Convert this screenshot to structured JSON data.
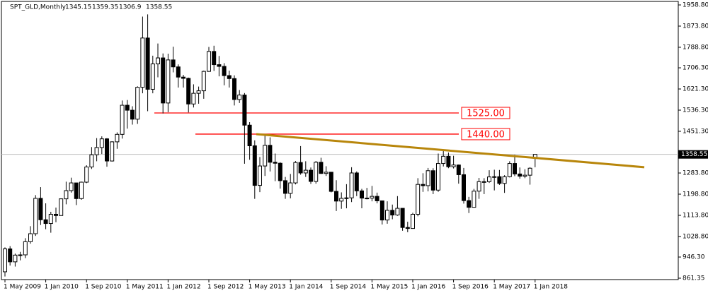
{
  "chart_data": {
    "type": "candlestick",
    "title": "SPT_GLD,Monthly",
    "categories": [
      "1 May 2009",
      null,
      null,
      null,
      null,
      null,
      null,
      null,
      "1 Jan 2010",
      null,
      null,
      null,
      null,
      null,
      null,
      null,
      "1 Sep 2010",
      null,
      null,
      null,
      null,
      null,
      null,
      null,
      "1 May 2011",
      null,
      null,
      null,
      null,
      null,
      null,
      null,
      "1 Jan 2012",
      null,
      null,
      null,
      null,
      null,
      null,
      null,
      "1 Sep 2012",
      null,
      null,
      null,
      null,
      null,
      null,
      null,
      "1 May 2013",
      null,
      null,
      null,
      null,
      null,
      null,
      null,
      "1 Jan 2014",
      null,
      null,
      null,
      null,
      null,
      null,
      null,
      "1 Sep 2014",
      null,
      null,
      null,
      null,
      null,
      null,
      null,
      "1 May 2015",
      null,
      null,
      null,
      null,
      null,
      null,
      null,
      "1 Jan 2016",
      null,
      null,
      null,
      null,
      null,
      null,
      null,
      "1 Sep 2016",
      null,
      null,
      null,
      null,
      null,
      null,
      null,
      "1 May 2017",
      null,
      null,
      null,
      null,
      null,
      null,
      null,
      "1 Jan 2018"
    ],
    "open": [
      887,
      979,
      927,
      954,
      955,
      1008,
      1040,
      1182,
      1096,
      1081,
      1118,
      1113,
      1180,
      1213,
      1244,
      1181,
      1247,
      1308,
      1357,
      1386,
      1421,
      1332,
      1409,
      1439,
      1556,
      1536,
      1500,
      1628,
      1826,
      1620,
      1722,
      1746,
      1565,
      1738,
      1710,
      1669,
      1664,
      1561,
      1604,
      1614,
      1692,
      1772,
      1719,
      1712,
      1675,
      1663,
      1579,
      1597,
      1476,
      1393,
      1234,
      1312,
      1395,
      1327,
      1323,
      1253,
      1202,
      1244,
      1326,
      1284,
      1295,
      1250,
      1327,
      1282,
      1287,
      1210,
      1171,
      1182,
      1184,
      1284,
      1212,
      1183,
      1183,
      1190,
      1172,
      1095,
      1134,
      1115,
      1142,
      1065,
      1061,
      1118,
      1238,
      1233,
      1293,
      1215,
      1322,
      1351,
      1309,
      1316,
      1277,
      1173,
      1146,
      1211,
      1249,
      1249,
      1268,
      1269,
      1242,
      1269,
      1322,
      1280,
      1271,
      1275,
      1345.15
    ],
    "high": [
      985,
      990,
      960,
      967,
      1022,
      1070,
      1195,
      1227,
      1162,
      1128,
      1145,
      1182,
      1249,
      1265,
      1244,
      1249,
      1315,
      1388,
      1424,
      1431,
      1424,
      1411,
      1447,
      1575,
      1577,
      1552,
      1632,
      1912,
      1921,
      1755,
      1804,
      1764,
      1763,
      1791,
      1720,
      1678,
      1667,
      1640,
      1631,
      1695,
      1790,
      1795,
      1754,
      1725,
      1695,
      1676,
      1617,
      1605,
      1488,
      1415,
      1348,
      1434,
      1427,
      1362,
      1327,
      1268,
      1280,
      1332,
      1392,
      1331,
      1306,
      1332,
      1345,
      1311,
      1287,
      1255,
      1206,
      1239,
      1307,
      1290,
      1220,
      1224,
      1232,
      1205,
      1173,
      1170,
      1157,
      1191,
      1142,
      1088,
      1124,
      1263,
      1283,
      1304,
      1303,
      1362,
      1375,
      1366,
      1353,
      1318,
      1304,
      1188,
      1220,
      1264,
      1263,
      1295,
      1297,
      1296,
      1275,
      1331,
      1357,
      1306,
      1299,
      1307,
      1359.35
    ],
    "low": [
      868,
      912,
      908,
      933,
      942,
      1000,
      1031,
      1075,
      1058,
      1044,
      1086,
      1113,
      1158,
      1205,
      1155,
      1176,
      1243,
      1300,
      1331,
      1360,
      1309,
      1330,
      1381,
      1422,
      1462,
      1478,
      1481,
      1604,
      1532,
      1604,
      1668,
      1523,
      1528,
      1688,
      1627,
      1627,
      1527,
      1547,
      1562,
      1582,
      1690,
      1694,
      1672,
      1636,
      1627,
      1555,
      1565,
      1321,
      1337,
      1180,
      1207,
      1272,
      1290,
      1251,
      1221,
      1180,
      1182,
      1238,
      1277,
      1268,
      1240,
      1241,
      1280,
      1272,
      1206,
      1131,
      1140,
      1142,
      1167,
      1191,
      1142,
      1178,
      1170,
      1162,
      1077,
      1080,
      1098,
      1112,
      1052,
      1046,
      1060,
      1110,
      1208,
      1210,
      1199,
      1208,
      1310,
      1303,
      1302,
      1241,
      1161,
      1123,
      1146,
      1180,
      1199,
      1244,
      1214,
      1236,
      1204,
      1266,
      1271,
      1261,
      1263,
      1237,
      1306.9
    ],
    "close": [
      979,
      927,
      954,
      955,
      1008,
      1040,
      1182,
      1096,
      1081,
      1118,
      1113,
      1180,
      1213,
      1244,
      1181,
      1247,
      1308,
      1357,
      1386,
      1421,
      1332,
      1409,
      1439,
      1556,
      1536,
      1500,
      1628,
      1826,
      1620,
      1722,
      1746,
      1565,
      1738,
      1710,
      1669,
      1664,
      1561,
      1604,
      1614,
      1692,
      1772,
      1719,
      1712,
      1675,
      1663,
      1579,
      1597,
      1476,
      1393,
      1234,
      1312,
      1395,
      1327,
      1323,
      1253,
      1202,
      1244,
      1326,
      1284,
      1295,
      1250,
      1327,
      1282,
      1287,
      1210,
      1171,
      1182,
      1184,
      1284,
      1212,
      1183,
      1183,
      1190,
      1172,
      1095,
      1134,
      1115,
      1142,
      1065,
      1061,
      1118,
      1238,
      1233,
      1293,
      1215,
      1322,
      1351,
      1309,
      1316,
      1277,
      1173,
      1146,
      1211,
      1249,
      1249,
      1268,
      1269,
      1242,
      1269,
      1322,
      1280,
      1271,
      1275,
      1303,
      1358.55
    ],
    "ylim": [
      855.7,
      1973.0
    ],
    "yticks": [
      {
        "value": 1958.8,
        "label": "1958.80"
      },
      {
        "value": 1873.8,
        "label": "1873.80"
      },
      {
        "value": 1788.8,
        "label": "1788.80"
      },
      {
        "value": 1706.3,
        "label": "1706.30"
      },
      {
        "value": 1621.3,
        "label": "1621.30"
      },
      {
        "value": 1536.3,
        "label": "1536.30"
      },
      {
        "value": 1451.3,
        "label": "1451.30"
      },
      {
        "value": 1283.8,
        "label": "1283.80"
      },
      {
        "value": 1198.8,
        "label": "1198.80"
      },
      {
        "value": 1113.8,
        "label": "1113.80"
      },
      {
        "value": 1028.8,
        "label": "1028.80"
      },
      {
        "value": 946.3,
        "label": "946.30"
      },
      861.35
    ],
    "hlines": [
      {
        "value": 1525,
        "label": "1525.00",
        "color": "#ff0000"
      },
      {
        "value": 1440,
        "label": "1440.00",
        "color": "#ff0000"
      }
    ],
    "trendline": {
      "start": 1440,
      "end": 1307,
      "color": "#b8860b"
    },
    "bull_color": "#ffffff",
    "bear_color": "#000000"
  }
}
